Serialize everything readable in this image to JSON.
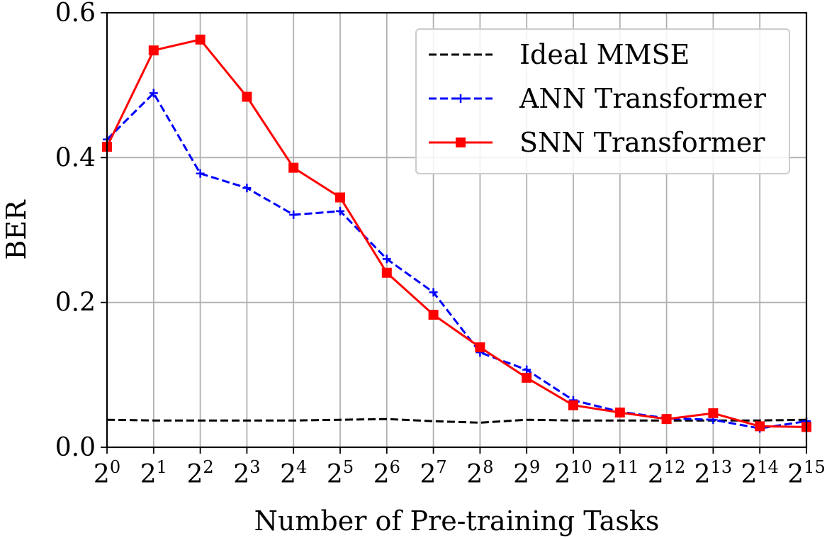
{
  "chart_data": {
    "type": "line",
    "title": "",
    "xlabel": "Number of Pre-training Tasks",
    "ylabel": "BER",
    "x_base": "2",
    "x_exponents": [
      "0",
      "1",
      "2",
      "3",
      "4",
      "5",
      "6",
      "7",
      "8",
      "9",
      "10",
      "11",
      "12",
      "13",
      "14",
      "15"
    ],
    "ylim": [
      0,
      0.6
    ],
    "yticks": [
      0.0,
      0.2,
      0.4,
      0.6
    ],
    "ytick_labels": [
      "0.0",
      "0.2",
      "0.4",
      "0.6"
    ],
    "grid": true,
    "legend_position": "top-right",
    "series": [
      {
        "name": "Ideal MMSE",
        "color": "#000000",
        "style": "dashed",
        "marker": "none",
        "values": [
          0.038,
          0.037,
          0.037,
          0.037,
          0.037,
          0.038,
          0.039,
          0.036,
          0.034,
          0.038,
          0.037,
          0.037,
          0.037,
          0.037,
          0.037,
          0.038
        ]
      },
      {
        "name": "ANN Transformer",
        "color": "#0000ff",
        "style": "dashed",
        "marker": "plus",
        "values": [
          0.425,
          0.489,
          0.378,
          0.358,
          0.321,
          0.326,
          0.26,
          0.214,
          0.131,
          0.107,
          0.065,
          0.049,
          0.04,
          0.038,
          0.026,
          0.036
        ]
      },
      {
        "name": "SNN Transformer",
        "color": "#ff0000",
        "style": "solid",
        "marker": "square",
        "values": [
          0.415,
          0.548,
          0.563,
          0.484,
          0.386,
          0.345,
          0.241,
          0.183,
          0.138,
          0.096,
          0.058,
          0.048,
          0.039,
          0.047,
          0.029,
          0.028
        ]
      }
    ]
  }
}
